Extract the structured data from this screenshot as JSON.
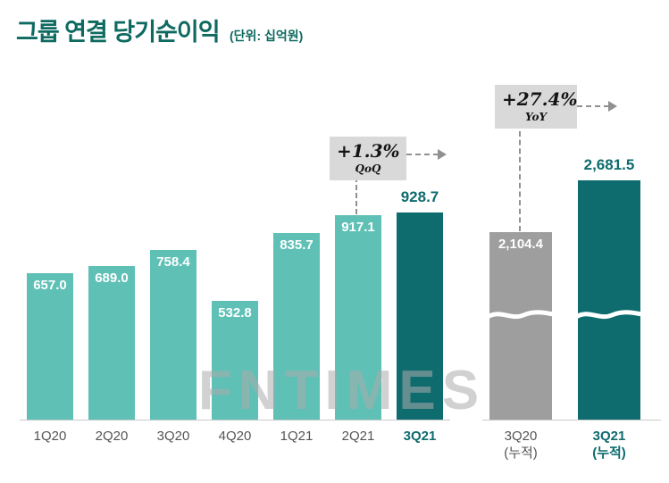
{
  "page": {
    "title": "그룹 연결 당기순이익",
    "unit_label": "(단위: 십억원)",
    "watermark": "FNTIMES"
  },
  "colors": {
    "title_text": "#0e6a60",
    "bar_light": "#5fc0b6",
    "bar_dark": "#0e6b6e",
    "bar_gray": "#9e9e9e",
    "annotation_bg": "#d9d9d9",
    "axis_text": "#555555",
    "dash": "#909090"
  },
  "chart_data": {
    "type": "bar",
    "title": "그룹 연결 당기순이익",
    "unit": "십억원",
    "legend_position": "none",
    "grid": false,
    "quarterly": {
      "categories": [
        "1Q20",
        "2Q20",
        "3Q20",
        "4Q20",
        "1Q21",
        "2Q21",
        "3Q21"
      ],
      "values": [
        657.0,
        689.0,
        758.4,
        532.8,
        835.7,
        917.1,
        928.7
      ],
      "value_labels": [
        "657.0",
        "689.0",
        "758.4",
        "532.8",
        "835.7",
        "917.1",
        "928.7"
      ],
      "highlight_index": 6,
      "annotation": {
        "delta": "+1.3%",
        "basis": "QoQ"
      }
    },
    "cumulative": {
      "categories": [
        {
          "line1": "3Q20",
          "line2": "(누적)"
        },
        {
          "line1": "3Q21",
          "line2": "(누적)"
        }
      ],
      "values": [
        2104.4,
        2681.5
      ],
      "value_labels": [
        "2,104.4",
        "2,681.5"
      ],
      "highlight_index": 1,
      "axis_break": true,
      "annotation": {
        "delta": "+27.4%",
        "basis": "YoY"
      }
    }
  }
}
